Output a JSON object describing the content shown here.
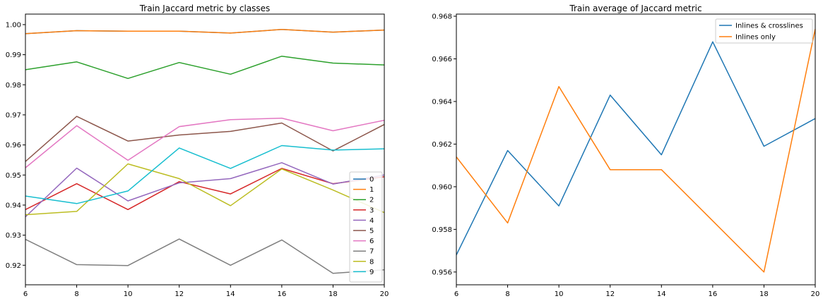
{
  "chart_data": [
    {
      "type": "line",
      "title": "Train Jaccard metric by classes",
      "xlabel": "",
      "ylabel": "",
      "xlim": [
        6,
        20
      ],
      "ylim": [
        0.9135,
        1.0035
      ],
      "x": [
        6,
        8,
        10,
        12,
        14,
        16,
        18,
        20
      ],
      "xticks": [
        "6",
        "8",
        "10",
        "12",
        "14",
        "16",
        "18",
        "20"
      ],
      "yticks": [
        {
          "v": 0.92,
          "label": "0.92"
        },
        {
          "v": 0.93,
          "label": "0.93"
        },
        {
          "v": 0.94,
          "label": "0.94"
        },
        {
          "v": 0.95,
          "label": "0.95"
        },
        {
          "v": 0.96,
          "label": "0.96"
        },
        {
          "v": 0.97,
          "label": "0.97"
        },
        {
          "v": 0.98,
          "label": "0.98"
        },
        {
          "v": 0.99,
          "label": "0.99"
        },
        {
          "v": 1.0,
          "label": "1.00"
        }
      ],
      "legend_position": "lower-right",
      "series": [
        {
          "name": "0",
          "color": "#1f77b4",
          "values": [
            0.997,
            0.998,
            0.9978,
            0.9978,
            0.9972,
            0.9984,
            0.9975,
            0.9982
          ]
        },
        {
          "name": "1",
          "color": "#ff7f0e",
          "values": [
            0.997,
            0.998,
            0.9978,
            0.9978,
            0.9972,
            0.9984,
            0.9975,
            0.9982
          ]
        },
        {
          "name": "2",
          "color": "#2ca02c",
          "values": [
            0.985,
            0.9876,
            0.9821,
            0.9874,
            0.9835,
            0.9895,
            0.9872,
            0.9866
          ]
        },
        {
          "name": "3",
          "color": "#d62728",
          "values": [
            0.9385,
            0.9471,
            0.9385,
            0.9478,
            0.9437,
            0.9522,
            0.9471,
            0.9494
          ]
        },
        {
          "name": "4",
          "color": "#9467bd",
          "values": [
            0.9361,
            0.9523,
            0.9414,
            0.9474,
            0.9488,
            0.9541,
            0.947,
            0.95
          ]
        },
        {
          "name": "5",
          "color": "#8c564b",
          "values": [
            0.9545,
            0.9695,
            0.9613,
            0.9633,
            0.9645,
            0.9673,
            0.958,
            0.9668
          ]
        },
        {
          "name": "6",
          "color": "#e377c2",
          "values": [
            0.9524,
            0.9664,
            0.9549,
            0.9661,
            0.9684,
            0.9689,
            0.9647,
            0.9682
          ]
        },
        {
          "name": "7",
          "color": "#7f7f7f",
          "values": [
            0.9286,
            0.9202,
            0.9199,
            0.9287,
            0.92,
            0.9284,
            0.9173,
            0.9185
          ]
        },
        {
          "name": "8",
          "color": "#bcbd22",
          "values": [
            0.9368,
            0.9379,
            0.9537,
            0.9488,
            0.9398,
            0.952,
            0.945,
            0.9375
          ]
        },
        {
          "name": "9",
          "color": "#17becf",
          "values": [
            0.943,
            0.9405,
            0.9447,
            0.959,
            0.9522,
            0.9598,
            0.9583,
            0.9587
          ]
        }
      ]
    },
    {
      "type": "line",
      "title": "Train average of Jaccard metric",
      "xlabel": "",
      "ylabel": "",
      "xlim": [
        6,
        20
      ],
      "ylim": [
        0.9554,
        0.9681
      ],
      "x": [
        6,
        8,
        10,
        12,
        14,
        16,
        18,
        20
      ],
      "xticks": [
        "6",
        "8",
        "10",
        "12",
        "14",
        "16",
        "18",
        "20"
      ],
      "yticks": [
        {
          "v": 0.956,
          "label": "0.956"
        },
        {
          "v": 0.958,
          "label": "0.958"
        },
        {
          "v": 0.96,
          "label": "0.960"
        },
        {
          "v": 0.962,
          "label": "0.962"
        },
        {
          "v": 0.964,
          "label": "0.964"
        },
        {
          "v": 0.966,
          "label": "0.966"
        },
        {
          "v": 0.968,
          "label": "0.968"
        }
      ],
      "legend_position": "upper-right",
      "series": [
        {
          "name": "Inlines & crosslines",
          "color": "#1f77b4",
          "values": [
            0.9568,
            0.9617,
            0.9591,
            0.9643,
            0.9615,
            0.9668,
            0.9619,
            0.9632
          ]
        },
        {
          "name": "Inlines only",
          "color": "#ff7f0e",
          "values": [
            0.9614,
            0.9583,
            0.9647,
            0.9608,
            0.9608,
            0.9584,
            0.956,
            0.9674
          ]
        }
      ]
    }
  ]
}
